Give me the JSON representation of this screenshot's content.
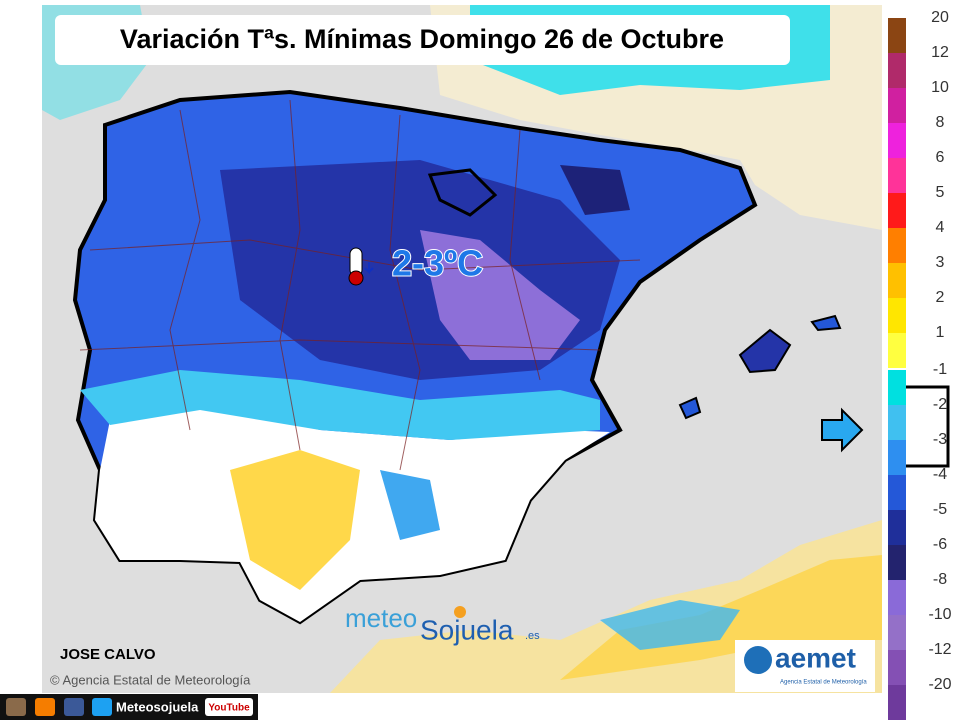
{
  "header": {
    "title": "Variación Tªs. Mínimas Domingo 26 de Octubre"
  },
  "annotation": {
    "label": "2-3ºC"
  },
  "credits": {
    "author": "JOSE CALVO",
    "copyright": "© Agencia Estatal de Meteorología"
  },
  "logo": {
    "part1": "meteo",
    "part2": "Sojuela",
    "suffix": ".es"
  },
  "aemet": {
    "name": "aemet",
    "subtitle": "Agencia Estatal de Meteorología"
  },
  "footer": {
    "handle": "Meteosojuela",
    "youtube": "YouTube"
  },
  "legend": {
    "items": [
      {
        "label": "20",
        "color": "#8b4513"
      },
      {
        "label": "12",
        "color": "#b02a6a"
      },
      {
        "label": "10",
        "color": "#d020a0"
      },
      {
        "label": "8",
        "color": "#ee22dd"
      },
      {
        "label": "6",
        "color": "#ff3399"
      },
      {
        "label": "5",
        "color": "#ff1a1a"
      },
      {
        "label": "4",
        "color": "#ff7f00"
      },
      {
        "label": "3",
        "color": "#ffc000"
      },
      {
        "label": "2",
        "color": "#ffe600"
      },
      {
        "label": "1",
        "color": "#ffff40"
      },
      {
        "label": "-1",
        "color": "#00e0e0"
      },
      {
        "label": "-2",
        "color": "#40c0f0"
      },
      {
        "label": "-3",
        "color": "#2e8ff0"
      },
      {
        "label": "-4",
        "color": "#2458d8"
      },
      {
        "label": "-5",
        "color": "#1f2f9a"
      },
      {
        "label": "-6",
        "color": "#23236e"
      },
      {
        "label": "-8",
        "color": "#8a6ad8"
      },
      {
        "label": "-10",
        "color": "#9470c8"
      },
      {
        "label": "-12",
        "color": "#8450b4"
      },
      {
        "label": "-20",
        "color": "#6e3a9c"
      }
    ]
  }
}
